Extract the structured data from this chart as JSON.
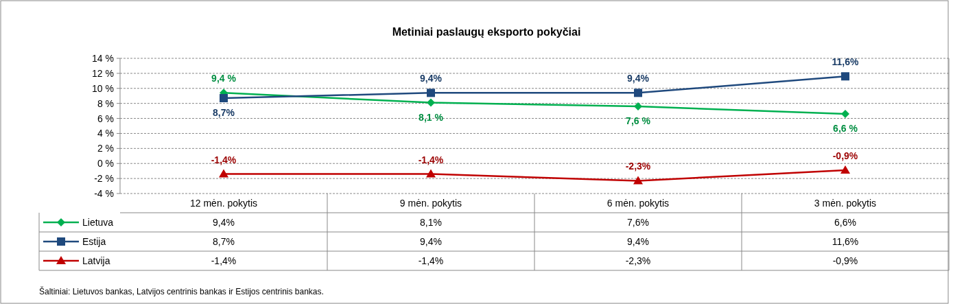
{
  "chart_data": {
    "type": "line",
    "title": "Metiniai paslaugų eksporto pokyčiai",
    "categories": [
      "12 mėn. pokytis",
      "9 mėn. pokytis",
      "6 mėn. pokytis",
      "3 mėn. pokytis"
    ],
    "series": [
      {
        "name": "Lietuva",
        "color": "#00b050",
        "marker": "diamond",
        "values": [
          9.4,
          8.1,
          7.6,
          6.6
        ],
        "value_labels": [
          "9,4 %",
          "8,1 %",
          "7,6 %",
          "6,6 %"
        ]
      },
      {
        "name": "Estija",
        "color": "#1f497d",
        "marker": "square",
        "values": [
          8.7,
          9.4,
          9.4,
          11.6
        ],
        "value_labels": [
          "8,7%",
          "9,4%",
          "9,4%",
          "11,6%"
        ]
      },
      {
        "name": "Latvija",
        "color": "#c00000",
        "marker": "triangle",
        "values": [
          -1.4,
          -1.4,
          -2.3,
          -0.9
        ],
        "value_labels": [
          "-1,4%",
          "-1,4%",
          "-2,3%",
          "-0,9%"
        ]
      }
    ],
    "ylim": [
      -4,
      14
    ],
    "yticks": [
      {
        "value": -4,
        "label": "-4 %"
      },
      {
        "value": -2,
        "label": "-2 %"
      },
      {
        "value": 0,
        "label": "0 %"
      },
      {
        "value": 2,
        "label": "2 %"
      },
      {
        "value": 4,
        "label": "4 %"
      },
      {
        "value": 6,
        "label": "6 %"
      },
      {
        "value": 8,
        "label": "8 %"
      },
      {
        "value": 10,
        "label": "10 %"
      },
      {
        "value": 12,
        "label": "12 %"
      },
      {
        "value": 14,
        "label": "14 %"
      }
    ],
    "grid": "y",
    "legend": "bottom",
    "annotations": [
      "Šaltiniai: Lietuvos bankas, Latvijos centrinis bankas ir Estijos centrinis bankas."
    ]
  }
}
